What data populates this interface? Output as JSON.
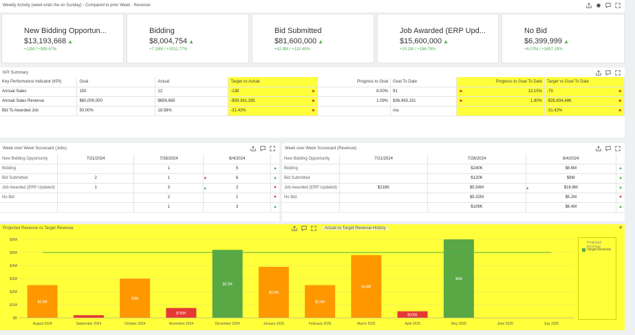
{
  "header": {
    "title": "Weekly Activity (week ends the on Sunday) - Compared to prior Week - Revenue"
  },
  "cards": [
    {
      "title": "New Bidding Opportun...",
      "value": "$13,193,668",
      "delta": "+12M / +999.47%"
    },
    {
      "title": "Bidding",
      "value": "$8,004,754",
      "delta": "+7.28M / +1011.77%"
    },
    {
      "title": "Bid Submitted",
      "value": "$81,600,000",
      "delta": "+42.8M / +110.49%"
    },
    {
      "title": "Job Awarded (ERP Upd...",
      "value": "$15,600,000",
      "delta": "+10.2M / +186.76%"
    },
    {
      "title": "No Bid",
      "value": "$6,399,999",
      "delta": "+6.07M / +1857.19%"
    }
  ],
  "kpi": {
    "title": "KPI Summary",
    "headers": [
      "Key Performance Indicator (KPI)",
      "Goal",
      "Actual",
      "Target vs Actual",
      "Progress to Goal",
      "Goal To Date",
      "Progress to Goal To Date",
      "Target vs Goal To Date"
    ],
    "rows": [
      {
        "kpi": "Annual Sales",
        "goal": "150",
        "actual": "12",
        "tva": "-138",
        "tva_flag": true,
        "ptg": "8.00%",
        "gtd": "91",
        "ptgtd": "13.15%",
        "ptgtd_flag": true,
        "tvgtd": "-79",
        "tvgtd_flag": true
      },
      {
        "kpi": "Annual Sales Revenue",
        "goal": "$60,000,000",
        "actual": "$658,665",
        "tva": "-$59,341,335",
        "tva_flag": true,
        "ptg": "1.09%",
        "gtd": "$36,493,151",
        "ptgtd": "1.80%",
        "ptgtd_flag": true,
        "tvgtd": "-$35,834,486",
        "tvgtd_flag": true
      },
      {
        "kpi": "Bid To Awarded Job",
        "goal": "50.00%",
        "actual": "18.58%",
        "tva": "-31.42%",
        "tva_flag": true,
        "ptg": "",
        "gtd": "n/a",
        "ptgtd": "",
        "ptgtd_flag": false,
        "tvgtd": "-31.42%",
        "tvgtd_flag": true
      }
    ]
  },
  "jobs": {
    "title": "Week over Week Scorecard (Jobs)",
    "header": "New Bidding Opportunity",
    "dates": [
      "7/21/2024",
      "7/28/2024",
      "8/4/2024"
    ],
    "rows": [
      {
        "label": "Bidding",
        "v": [
          "",
          "1",
          "5"
        ],
        "t": [
          "",
          "",
          "up"
        ]
      },
      {
        "label": "Bid Submitted",
        "v": [
          "2",
          "1",
          "6"
        ],
        "t": [
          "",
          "down",
          "up"
        ]
      },
      {
        "label": "Job Awarded (ERP Updated)",
        "v": [
          "1",
          "3",
          "2"
        ],
        "t": [
          "",
          "up",
          "down"
        ]
      },
      {
        "label": "No Bid",
        "v": [
          "",
          "2",
          "1"
        ],
        "t": [
          "",
          "",
          "down"
        ]
      },
      {
        "label": "",
        "v": [
          "",
          "1",
          "3"
        ],
        "t": [
          "",
          "",
          "up"
        ]
      }
    ]
  },
  "revenue": {
    "title": "Week over Week Scorecard (Revenue)",
    "header": "New Bidding Opportunity",
    "dates": [
      "7/21/2024",
      "7/28/2024",
      "8/4/2024"
    ],
    "rows": [
      {
        "label": "Bidding",
        "v": [
          "",
          "$240K",
          "$6.6M"
        ],
        "t": [
          "",
          "",
          "up"
        ]
      },
      {
        "label": "Bid Submitted",
        "v": [
          "",
          "$120K",
          "$8M"
        ],
        "t": [
          "",
          "",
          "up"
        ]
      },
      {
        "label": "Job Awarded (ERP Updated)",
        "v": [
          "$218K",
          "$5.54M",
          "$16.8M"
        ],
        "t": [
          "",
          "up",
          "up"
        ]
      },
      {
        "label": "No Bid",
        "v": [
          "",
          "$5.32M",
          "$5.2M"
        ],
        "t": [
          "",
          "",
          "down"
        ]
      },
      {
        "label": "",
        "v": [
          "",
          "$109K",
          "$6.4M"
        ],
        "t": [
          "",
          "",
          "up"
        ]
      }
    ]
  },
  "chart_tabs": {
    "a": "Projected Revenue vs Target Revenue",
    "b": "Actual vs Target Revenue History"
  },
  "chart_data": {
    "type": "bar",
    "categories": [
      "August 2024",
      "September 2024",
      "October 2024",
      "November 2024",
      "December 2024",
      "January 2025",
      "February 2025",
      "March 2025",
      "April 2025",
      "May 2025",
      "June 2025",
      "July 2025"
    ],
    "series": [
      {
        "name": "Projected Revenue",
        "values": [
          2.5,
          0.2,
          3.0,
          0.75,
          5.2,
          3.9,
          2.5,
          4.8,
          0.5,
          6.0,
          0,
          0
        ],
        "labels": [
          "$2.5M",
          "",
          "$3M",
          "$750K",
          "$5.2M",
          "$3.9M",
          "$2.5M",
          "$4.8M",
          "$500K",
          "$6M",
          "",
          ""
        ],
        "colors": [
          "#ff9800",
          "#e53935",
          "#ff9800",
          "#e53935",
          "#5aa845",
          "#ff9800",
          "#ff9800",
          "#ff9800",
          "#e53935",
          "#5aa845",
          "",
          ""
        ]
      },
      {
        "name": "Target Revenue",
        "values": [
          5,
          5,
          5,
          5,
          5,
          5,
          5,
          5,
          5,
          5,
          5,
          5
        ]
      }
    ],
    "ytick_labels": [
      "$0",
      "$1M",
      "$2M",
      "$3M",
      "$4M",
      "$5M",
      "$6M"
    ],
    "ylim": [
      0,
      6
    ],
    "legend": {
      "title": "Projected Revenue",
      "item": "Target Revenue"
    },
    "colors": {
      "orange": "#ff9800",
      "red": "#e53935",
      "green": "#5aa845",
      "target": "#4caf50"
    }
  }
}
